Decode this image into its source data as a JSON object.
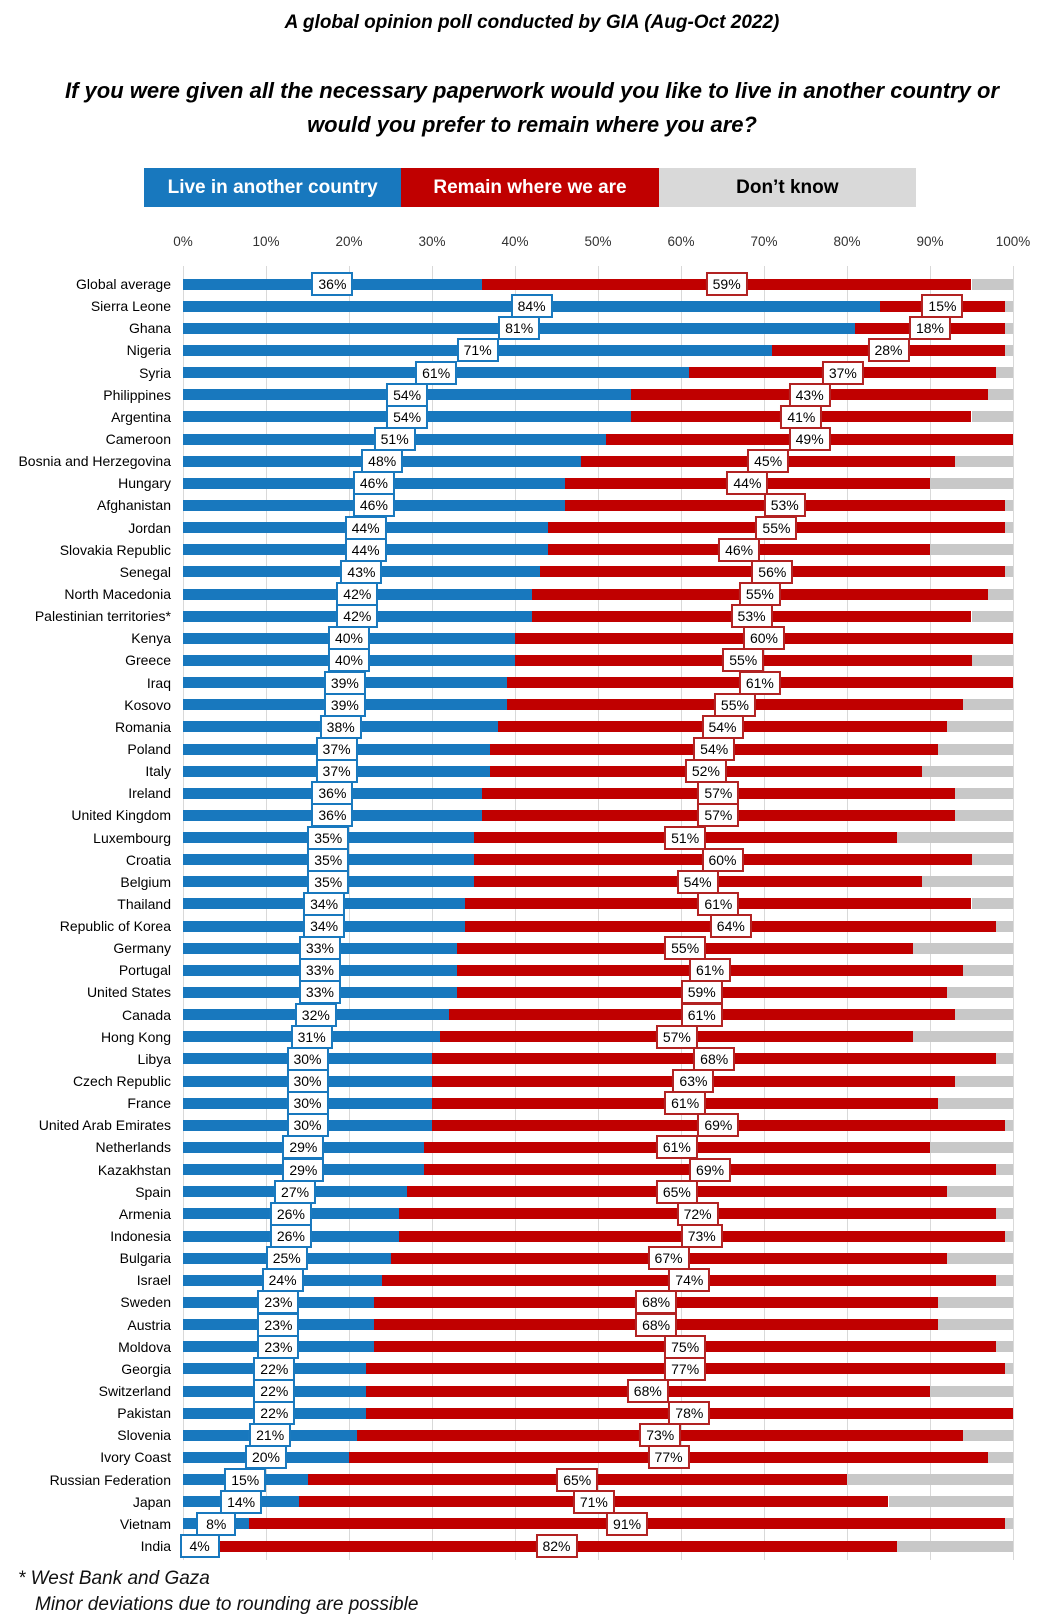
{
  "footnote": {
    "line1": "* West Bank and Gaza",
    "line2": "Minor deviations due to rounding are possible"
  },
  "chart_data": {
    "type": "bar",
    "variant": "horizontal-stacked-100pct",
    "title": "A global opinion poll conducted by GIA (Aug-Oct 2022)",
    "subtitle": "If you were given all the necessary paperwork would you like to live in another country or would you prefer to remain where you are?",
    "xlabel": "",
    "ylabel": "",
    "xlim": [
      0,
      100
    ],
    "grid": "vertical",
    "x_ticks": [
      "0%",
      "10%",
      "20%",
      "30%",
      "40%",
      "50%",
      "60%",
      "70%",
      "80%",
      "90%",
      "100%"
    ],
    "colors": {
      "live": "#1878BE",
      "remain": "#C00000",
      "dont_know": "#C8C8C8",
      "gridline": "#D9D9D9",
      "label_border_live": "#1878BE",
      "label_border_remain": "#B22222"
    },
    "legend": [
      {
        "label": "Live in another country",
        "color": "#1878BE",
        "text_color": "#FFFFFF"
      },
      {
        "label": "Remain where we are",
        "color": "#C00000",
        "text_color": "#FFFFFF"
      },
      {
        "label": "Don’t know",
        "color": "#D9D9D9",
        "text_color": "#000000"
      }
    ],
    "dont_know_rule": "remainder to 100%, not labeled",
    "rows": [
      {
        "country": "Global average",
        "live": 36,
        "remain": 59
      },
      {
        "country": "Sierra Leone",
        "live": 84,
        "remain": 15
      },
      {
        "country": "Ghana",
        "live": 81,
        "remain": 18
      },
      {
        "country": "Nigeria",
        "live": 71,
        "remain": 28
      },
      {
        "country": "Syria",
        "live": 61,
        "remain": 37
      },
      {
        "country": "Philippines",
        "live": 54,
        "remain": 43
      },
      {
        "country": "Argentina",
        "live": 54,
        "remain": 41
      },
      {
        "country": "Cameroon",
        "live": 51,
        "remain": 49
      },
      {
        "country": "Bosnia and Herzegovina",
        "live": 48,
        "remain": 45
      },
      {
        "country": "Hungary",
        "live": 46,
        "remain": 44
      },
      {
        "country": "Afghanistan",
        "live": 46,
        "remain": 53
      },
      {
        "country": "Jordan",
        "live": 44,
        "remain": 55
      },
      {
        "country": "Slovakia Republic",
        "live": 44,
        "remain": 46
      },
      {
        "country": "Senegal",
        "live": 43,
        "remain": 56
      },
      {
        "country": "North Macedonia",
        "live": 42,
        "remain": 55
      },
      {
        "country": "Palestinian territories*",
        "live": 42,
        "remain": 53
      },
      {
        "country": "Kenya",
        "live": 40,
        "remain": 60
      },
      {
        "country": "Greece",
        "live": 40,
        "remain": 55
      },
      {
        "country": "Iraq",
        "live": 39,
        "remain": 61
      },
      {
        "country": "Kosovo",
        "live": 39,
        "remain": 55
      },
      {
        "country": "Romania",
        "live": 38,
        "remain": 54
      },
      {
        "country": "Poland",
        "live": 37,
        "remain": 54
      },
      {
        "country": "Italy",
        "live": 37,
        "remain": 52
      },
      {
        "country": "Ireland",
        "live": 36,
        "remain": 57
      },
      {
        "country": "United Kingdom",
        "live": 36,
        "remain": 57
      },
      {
        "country": "Luxembourg",
        "live": 35,
        "remain": 51
      },
      {
        "country": "Croatia",
        "live": 35,
        "remain": 60
      },
      {
        "country": "Belgium",
        "live": 35,
        "remain": 54
      },
      {
        "country": "Thailand",
        "live": 34,
        "remain": 61
      },
      {
        "country": "Republic of Korea",
        "live": 34,
        "remain": 64
      },
      {
        "country": "Germany",
        "live": 33,
        "remain": 55
      },
      {
        "country": "Portugal",
        "live": 33,
        "remain": 61
      },
      {
        "country": "United States",
        "live": 33,
        "remain": 59
      },
      {
        "country": "Canada",
        "live": 32,
        "remain": 61
      },
      {
        "country": "Hong Kong",
        "live": 31,
        "remain": 57
      },
      {
        "country": "Libya",
        "live": 30,
        "remain": 68
      },
      {
        "country": "Czech Republic",
        "live": 30,
        "remain": 63
      },
      {
        "country": "France",
        "live": 30,
        "remain": 61
      },
      {
        "country": "United Arab Emirates",
        "live": 30,
        "remain": 69
      },
      {
        "country": "Netherlands",
        "live": 29,
        "remain": 61
      },
      {
        "country": "Kazakhstan",
        "live": 29,
        "remain": 69
      },
      {
        "country": "Spain",
        "live": 27,
        "remain": 65
      },
      {
        "country": "Armenia",
        "live": 26,
        "remain": 72
      },
      {
        "country": "Indonesia",
        "live": 26,
        "remain": 73
      },
      {
        "country": "Bulgaria",
        "live": 25,
        "remain": 67
      },
      {
        "country": "Israel",
        "live": 24,
        "remain": 74
      },
      {
        "country": "Sweden",
        "live": 23,
        "remain": 68
      },
      {
        "country": "Austria",
        "live": 23,
        "remain": 68
      },
      {
        "country": "Moldova",
        "live": 23,
        "remain": 75
      },
      {
        "country": "Georgia",
        "live": 22,
        "remain": 77
      },
      {
        "country": "Switzerland",
        "live": 22,
        "remain": 68
      },
      {
        "country": "Pakistan",
        "live": 22,
        "remain": 78
      },
      {
        "country": "Slovenia",
        "live": 21,
        "remain": 73
      },
      {
        "country": "Ivory Coast",
        "live": 20,
        "remain": 77
      },
      {
        "country": "Russian Federation",
        "live": 15,
        "remain": 65
      },
      {
        "country": "Japan",
        "live": 14,
        "remain": 71
      },
      {
        "country": "Vietnam",
        "live": 8,
        "remain": 91
      },
      {
        "country": "India",
        "live": 4,
        "remain": 82
      }
    ]
  }
}
